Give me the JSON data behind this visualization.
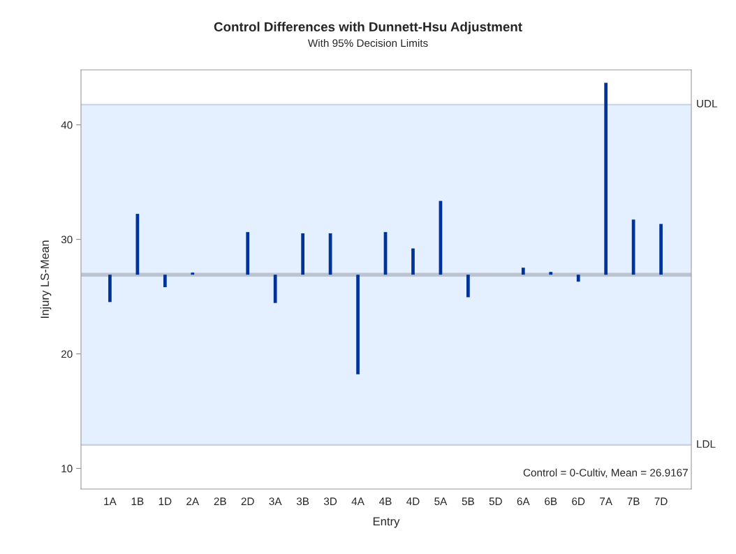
{
  "chart_data": {
    "type": "bar",
    "title": "Control Differences with Dunnett-Hsu Adjustment",
    "subtitle": "With 95% Decision Limits",
    "xlabel": "Entry",
    "ylabel": "Injury LS-Mean",
    "categories": [
      "1A",
      "1B",
      "1D",
      "2A",
      "2B",
      "2D",
      "3A",
      "3B",
      "3D",
      "4A",
      "4B",
      "4D",
      "5A",
      "5B",
      "5D",
      "6A",
      "6B",
      "6D",
      "7A",
      "7B",
      "7D"
    ],
    "base": [
      26.9167,
      26.9167,
      26.9167,
      26.9167,
      null,
      26.9167,
      26.9167,
      26.9167,
      26.9167,
      26.9167,
      26.9167,
      26.9167,
      26.9167,
      26.9167,
      null,
      26.9167,
      26.9167,
      26.9167,
      26.9167,
      26.9167,
      26.9167
    ],
    "values": [
      -2.39,
      5.31,
      -1.09,
      0.18,
      null,
      3.72,
      -2.47,
      3.61,
      3.61,
      -8.69,
      3.72,
      2.29,
      6.44,
      -1.97,
      null,
      0.61,
      0.24,
      -0.61,
      16.76,
      4.81,
      4.43
    ],
    "color": "#003399",
    "ylim": [
      8.2,
      44.8
    ],
    "yticks": [
      10,
      20,
      30,
      40
    ],
    "grid": false,
    "ref_lines": [
      {
        "axis": "y",
        "value": 26.9167,
        "color": "#bcc3d1"
      },
      {
        "axis": "y",
        "value": 41.77,
        "label": "UDL",
        "color": "#c4d0e4"
      },
      {
        "axis": "y",
        "value": 12.05,
        "label": "LDL",
        "color": "#c4d0e4"
      }
    ],
    "bands": [
      {
        "axis": "y",
        "from": 12.05,
        "to": 41.77,
        "color": "#e4efff"
      }
    ],
    "annotations": [
      "Control = 0-Cultiv, Mean = 26.9167"
    ]
  }
}
